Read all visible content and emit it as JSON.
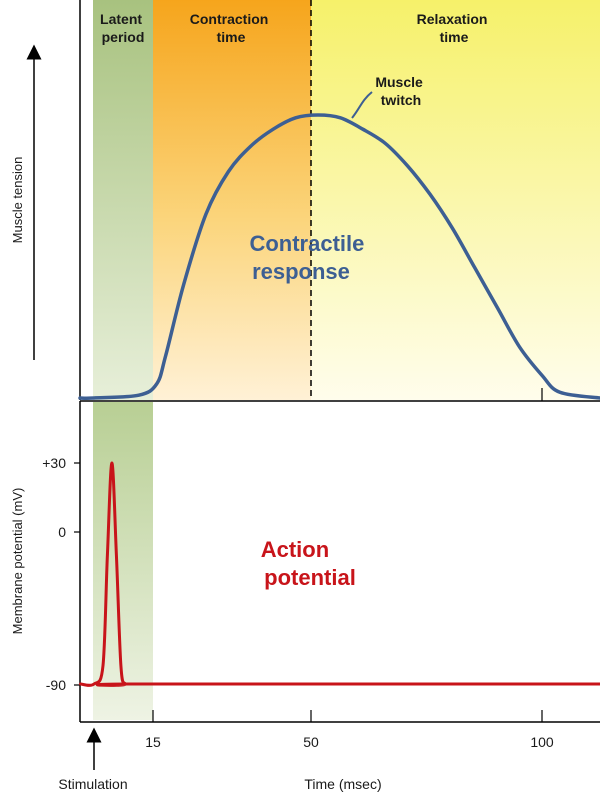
{
  "chart_data": [
    {
      "type": "line",
      "phases": [
        {
          "label_lines": [
            "Latent",
            "period"
          ],
          "x_range_msec": [
            0,
            15
          ],
          "color": "#a3bf7a"
        },
        {
          "label_lines": [
            "Contraction",
            "time"
          ],
          "x_range_msec": [
            15,
            50
          ],
          "color": "#f5a623"
        },
        {
          "label_lines": [
            "Relaxation",
            "time"
          ],
          "x_range_msec": [
            50,
            115
          ],
          "color": "#f7f27a"
        }
      ],
      "series": [
        {
          "label_lines": [
            "Contractile",
            "response"
          ],
          "color": "#3d5f93",
          "x": [
            0,
            10,
            14,
            16,
            20,
            25,
            30,
            35,
            40,
            45,
            50,
            55,
            60,
            65,
            70,
            75,
            80,
            85,
            90,
            95,
            100,
            104
          ],
          "y": [
            0,
            0.01,
            0.05,
            0.15,
            0.4,
            0.65,
            0.8,
            0.89,
            0.95,
            0.99,
            1.0,
            0.99,
            0.95,
            0.9,
            0.82,
            0.72,
            0.6,
            0.46,
            0.32,
            0.18,
            0.08,
            0.02
          ]
        }
      ],
      "annotations": [
        {
          "lines": [
            "Muscle",
            "twitch"
          ]
        }
      ],
      "ylabel": "Muscle tension",
      "peak_msec": 50
    },
    {
      "type": "line",
      "series": [
        {
          "label_lines": [
            "Action",
            "potential"
          ],
          "color": "#c8141a",
          "x": [
            -3,
            0,
            2,
            3,
            4,
            5,
            6,
            7,
            9,
            115
          ],
          "y": [
            -90,
            -90,
            -80,
            -20,
            30,
            -20,
            -80,
            -90,
            -90,
            -90
          ]
        }
      ],
      "ylabel": "Membrane potential (mV)",
      "y_ticks": [
        "+30",
        "0",
        "-90"
      ],
      "y_tick_values": [
        30,
        0,
        -90
      ],
      "x_ticks": [
        "15",
        "50",
        "100"
      ],
      "x_tick_values": [
        15,
        50,
        100
      ],
      "xlabel": "Time (msec)",
      "stimulus": {
        "label": "Stimulation",
        "x_msec": 0
      }
    }
  ]
}
